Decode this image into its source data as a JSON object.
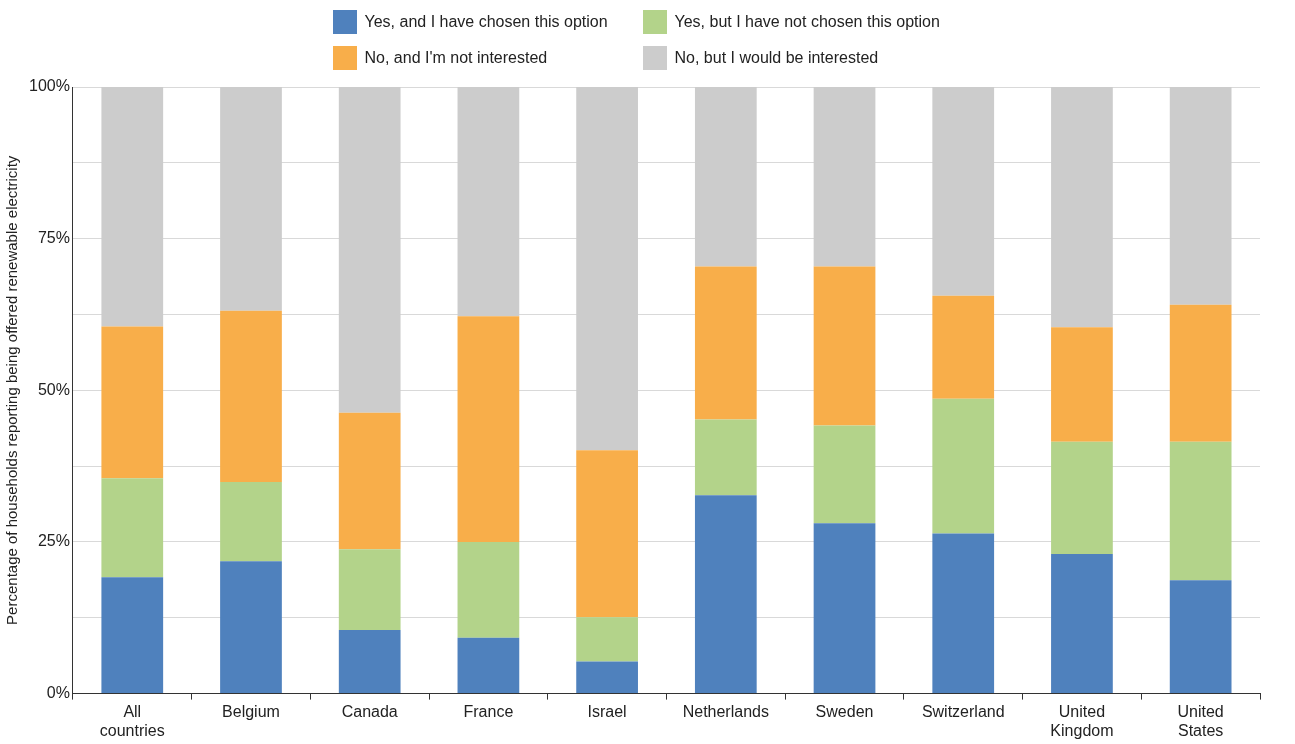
{
  "chart_data": {
    "type": "bar",
    "stacked": true,
    "ylabel": "Percentage of households reporting being offered renewable electricity",
    "categories": [
      "All countries",
      "Belgium",
      "Canada",
      "France",
      "Israel",
      "Netherlands",
      "Sweden",
      "Switzerland",
      "United Kingdom",
      "United States"
    ],
    "series": [
      {
        "name": "Yes, and I have chosen this option",
        "color": "#4f81bd",
        "values": [
          19.2,
          21.8,
          10.5,
          9.2,
          5.3,
          32.7,
          28.1,
          26.4,
          23.0,
          18.7
        ]
      },
      {
        "name": "Yes, but I have not chosen this option",
        "color": "#b3d38a",
        "values": [
          16.3,
          13.1,
          13.3,
          15.8,
          7.3,
          12.5,
          16.1,
          22.2,
          18.5,
          22.8
        ]
      },
      {
        "name": "No, and I'm not interested",
        "color": "#f8ae4a",
        "values": [
          25.0,
          28.2,
          22.5,
          37.2,
          27.5,
          25.2,
          26.2,
          17.0,
          18.9,
          22.6
        ]
      },
      {
        "name": "No, but I would be interested",
        "color": "#cccccc",
        "values": [
          39.5,
          36.9,
          53.7,
          37.8,
          59.9,
          29.6,
          29.6,
          34.4,
          39.6,
          35.9
        ]
      }
    ],
    "ylim": [
      0,
      100
    ],
    "yticks": [
      {
        "value": 0,
        "label": "0%"
      },
      {
        "value": 12.5,
        "label": null
      },
      {
        "value": 25,
        "label": "25%"
      },
      {
        "value": 37.5,
        "label": null
      },
      {
        "value": 50,
        "label": "50%"
      },
      {
        "value": 62.5,
        "label": null
      },
      {
        "value": 75,
        "label": "75%"
      },
      {
        "value": 87.5,
        "label": null
      },
      {
        "value": 100,
        "label": "100%"
      }
    ],
    "grid": "y",
    "legend": "top"
  }
}
